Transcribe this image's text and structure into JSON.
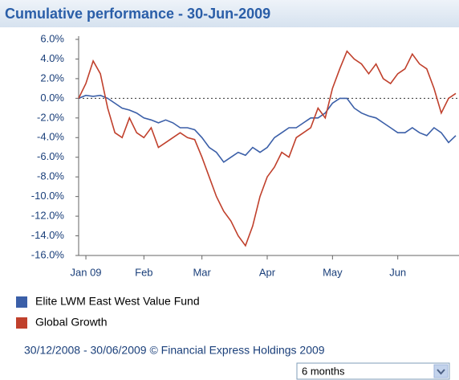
{
  "chart_data": {
    "type": "line",
    "title": "Cumulative performance - 30-Jun-2009",
    "categories": [
      null,
      "Jan 09",
      null,
      null,
      null,
      null,
      null,
      null,
      null,
      "Feb",
      null,
      null,
      null,
      null,
      null,
      null,
      null,
      "Mar",
      null,
      null,
      null,
      null,
      null,
      null,
      null,
      null,
      "Apr",
      null,
      null,
      null,
      null,
      null,
      null,
      null,
      null,
      "May",
      null,
      null,
      null,
      null,
      null,
      null,
      null,
      null,
      "Jun",
      null,
      null,
      null,
      null,
      null,
      null,
      null,
      null
    ],
    "series": [
      {
        "name": "Elite LWM East West Value Fund",
        "color": "#3b5fa8",
        "values": [
          0,
          0.3,
          0.2,
          0.3,
          0,
          -0.5,
          -1,
          -1.2,
          -1.5,
          -2,
          -2.2,
          -2.5,
          -2.2,
          -2.5,
          -3,
          -3,
          -3.2,
          -4,
          -5,
          -5.5,
          -6.5,
          -6,
          -5.5,
          -5.8,
          -5,
          -5.5,
          -5,
          -4,
          -3.5,
          -3,
          -3,
          -2.5,
          -2,
          -2,
          -1.5,
          -0.5,
          0,
          0,
          -1,
          -1.5,
          -1.8,
          -2,
          -2.5,
          -3,
          -3.5,
          -3.5,
          -3,
          -3.5,
          -3.8,
          -3,
          -3.5,
          -4.5,
          -3.8
        ]
      },
      {
        "name": "Global Growth",
        "color": "#c0402c",
        "values": [
          0,
          1.5,
          3.8,
          2.5,
          -1,
          -3.5,
          -4,
          -2,
          -3.5,
          -4,
          -3,
          -5,
          -4.5,
          -4,
          -3.5,
          -4,
          -4.2,
          -6,
          -8,
          -10,
          -11.5,
          -12.5,
          -14,
          -15,
          -13,
          -10,
          -8,
          -7,
          -5.5,
          -6,
          -4,
          -3.5,
          -3,
          -1,
          -2,
          1,
          3,
          4.8,
          4,
          3.5,
          2.5,
          3.5,
          2,
          1.5,
          2.5,
          3,
          4.5,
          3.5,
          3,
          1,
          -1.5,
          0,
          0.5
        ]
      }
    ],
    "ylim": [
      -16,
      6
    ],
    "yticks": [
      {
        "value": 6,
        "label": "6.0%"
      },
      {
        "value": 4,
        "label": "4.0%"
      },
      {
        "value": 2,
        "label": "2.0%"
      },
      {
        "value": 0,
        "label": "0.0%"
      },
      {
        "value": -2,
        "label": "-2.0%"
      },
      {
        "value": -4,
        "label": "-4.0%"
      },
      {
        "value": -6,
        "label": "-6.0%"
      },
      {
        "value": -8,
        "label": "-8.0%"
      },
      {
        "value": -10,
        "label": "-10.0%"
      },
      {
        "value": -12,
        "label": "-12.0%"
      },
      {
        "value": -14,
        "label": "-14.0%"
      },
      {
        "value": -16,
        "label": "-16.0%"
      }
    ],
    "grid": false
  },
  "footer": "30/12/2008 - 30/06/2009 © Financial Express Holdings 2009",
  "range_selector": "6 months"
}
